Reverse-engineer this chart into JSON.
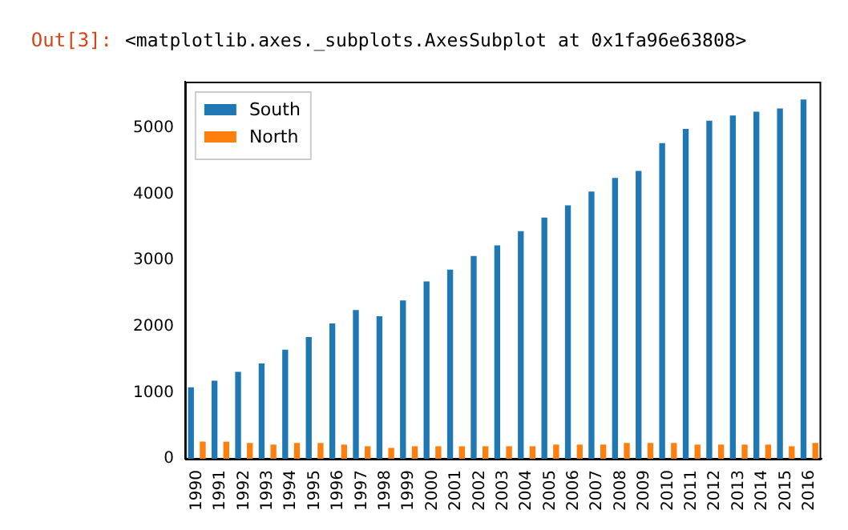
{
  "chart_data": {
    "type": "bar",
    "annotations": [
      "Out[3]:",
      "<matplotlib.axes._subplots.AxesSubplot at 0x1fa96e63808>"
    ],
    "categories": [
      "1990",
      "1991",
      "1992",
      "1993",
      "1994",
      "1995",
      "1996",
      "1997",
      "1998",
      "1999",
      "2000",
      "2001",
      "2002",
      "2003",
      "2004",
      "2005",
      "2006",
      "2007",
      "2008",
      "2009",
      "2010",
      "2011",
      "2012",
      "2013",
      "2014",
      "2015",
      "2016"
    ],
    "series": [
      {
        "name": "South",
        "color": "#1f77b4",
        "values": [
          1080,
          1180,
          1315,
          1440,
          1650,
          1840,
          2045,
          2250,
          2155,
          2395,
          2680,
          2860,
          3065,
          3225,
          3440,
          3645,
          3830,
          4040,
          4245,
          4350,
          4770,
          4985,
          5110,
          5190,
          5245,
          5295,
          5430
        ]
      },
      {
        "name": "North",
        "color": "#ff7f0e",
        "values": [
          260,
          260,
          240,
          215,
          240,
          240,
          215,
          190,
          165,
          190,
          190,
          190,
          190,
          190,
          190,
          215,
          215,
          215,
          240,
          240,
          240,
          215,
          215,
          215,
          215,
          190,
          240
        ]
      }
    ],
    "ylim": [
      0,
      5700
    ],
    "yticks": [
      0,
      1000,
      2000,
      3000,
      4000,
      5000
    ],
    "grid": false,
    "legend": "top left"
  }
}
